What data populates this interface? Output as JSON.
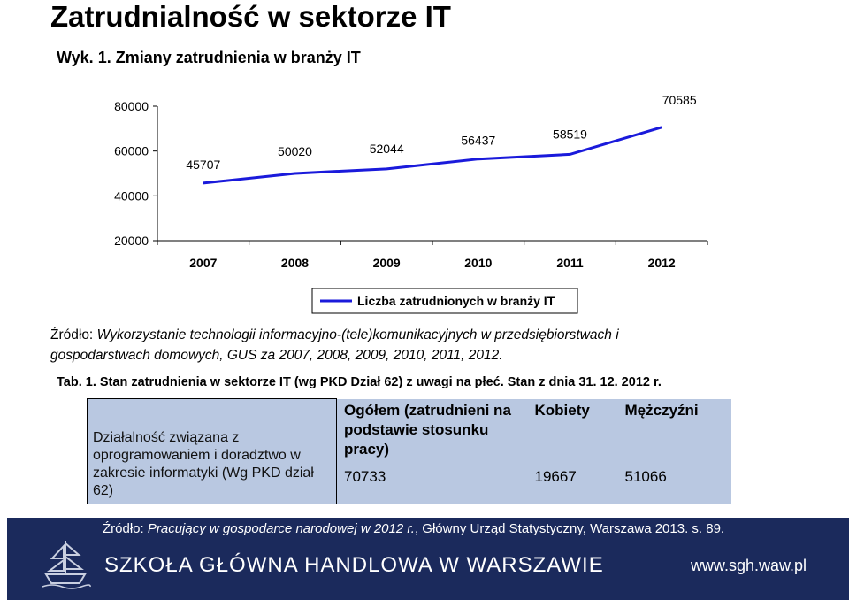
{
  "page": {
    "title": "Zatrudnialność w sektorze IT",
    "chart_caption": "Wyk. 1. Zmiany zatrudnienia w branży IT",
    "source1_prefix": "Źródło: ",
    "source1_line1": "Wykorzystanie technologii informacyjno-(tele)komunikacyjnych w przedsiębiorstwach i",
    "source1_line2": "gospodarstwach domowych, GUS za 2007, 2008, 2009, 2010, 2011, 2012.",
    "table_caption": "Tab. 1. Stan zatrudnienia w sektorze IT (wg PKD Dział 62) z uwagi na płeć. Stan z dnia 31. 12. 2012 r.",
    "table": {
      "row_header": "Działalność związana z oprogramowaniem i doradztwo w zakresie informatyki (Wg PKD dział 62)",
      "col_total": "Ogółem (zatrudnieni na podstawie stosunku pracy)",
      "col_women": "Kobiety",
      "col_men": "Mężczyźni",
      "val_total": "70733",
      "val_women": "19667",
      "val_men": "51066"
    },
    "footer": {
      "source_prefix": "Źródło: ",
      "source_title": "Pracujący w gospodarce narodowej w 2012 r.",
      "source_rest": ", Główny Urząd Statystyczny, Warszawa 2013. s. 89.",
      "school": "SZKOŁA GŁÓWNA HANDLOWA W WARSZAWIE",
      "url": "www.sgh.waw.pl"
    }
  },
  "chart_data": {
    "type": "line",
    "title": "Wyk. 1. Zmiany zatrudnienia w branży IT",
    "categories": [
      "2007",
      "2008",
      "2009",
      "2010",
      "2011",
      "2012"
    ],
    "yticks": [
      20000,
      40000,
      60000,
      80000
    ],
    "ylim": [
      20000,
      80000
    ],
    "series": [
      {
        "name": "Liczba zatrudnionych w branży IT",
        "values": [
          45707,
          50020,
          52044,
          56437,
          58519,
          70585
        ],
        "labels": [
          "45707",
          "50020",
          "52044",
          "56437",
          "58519",
          "70585"
        ],
        "color": "#1a1adb"
      }
    ],
    "legend": "bottom-right",
    "grid": false
  }
}
